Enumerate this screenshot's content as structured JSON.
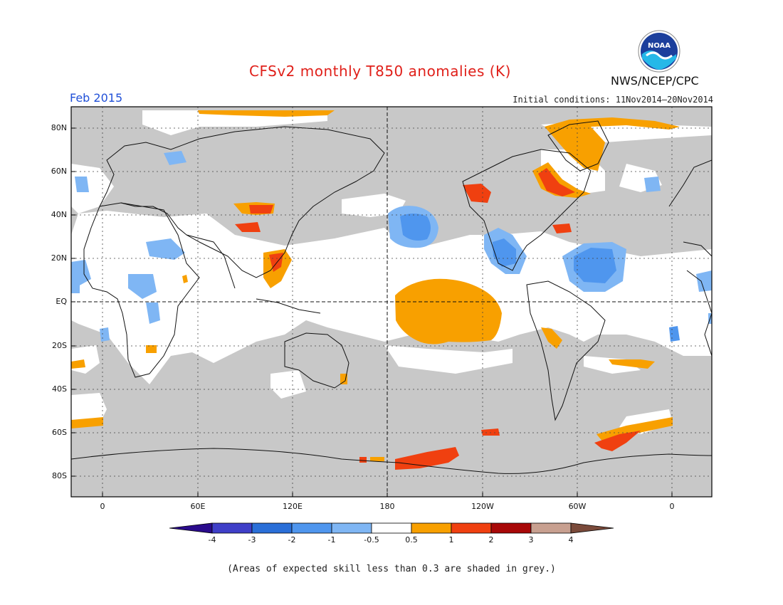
{
  "header": {
    "title": "CFSv2 monthly T850 anomalies (K)",
    "month": "Feb 2015",
    "initial_conditions": "Initial conditions: 11Nov2014–20Nov2014",
    "agency": "NWS/NCEP/CPC",
    "logo_text": "NOAA"
  },
  "axes": {
    "lat_labels": [
      "80N",
      "60N",
      "40N",
      "20N",
      "EQ",
      "20S",
      "40S",
      "60S",
      "80S"
    ],
    "lon_labels": [
      "0",
      "60E",
      "120E",
      "180",
      "120W",
      "60W",
      "0"
    ]
  },
  "legend": {
    "labels": [
      "-4",
      "-3",
      "-2",
      "-1",
      "-0.5",
      "0.5",
      "1",
      "2",
      "3",
      "4"
    ],
    "colors": [
      "#2a0b8c",
      "#3f3fc8",
      "#2a6fd8",
      "#4f96ee",
      "#7fb6f4",
      "#ffffff",
      "#f8a000",
      "#f04010",
      "#a80808",
      "#c8a090",
      "#7a4a3a"
    ]
  },
  "map_colors": {
    "grey_low_skill": "#c8c8c8",
    "ocean_white": "#ffffff"
  },
  "footnote": "(Areas of expected skill less than 0.3 are shaded in grey.)"
}
